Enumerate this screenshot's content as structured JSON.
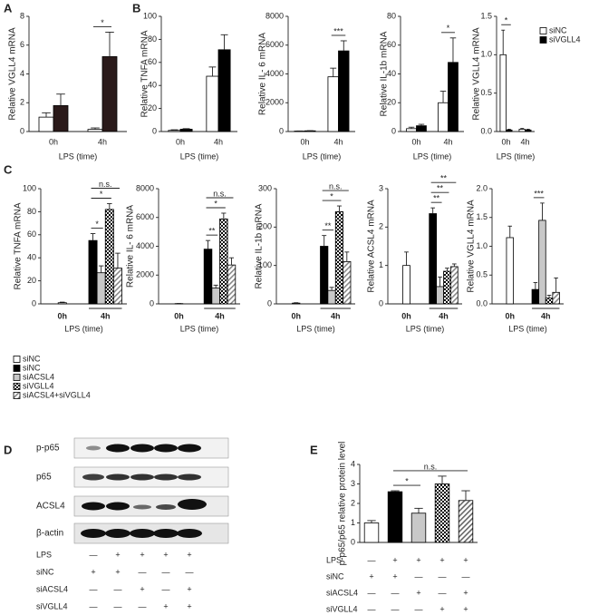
{
  "panel_labels": [
    "A",
    "B",
    "C",
    "D",
    "E"
  ],
  "chart_data": [
    {
      "type": "bar",
      "ylabel": "Relative VGLL4 mRNA",
      "xlabel": "LPS (time)",
      "categories": [
        "0h",
        "4h"
      ],
      "series": [
        {
          "color": "#ffffff",
          "pattern": "none",
          "values": [
            1.0,
            0.15
          ],
          "errors": [
            0.3,
            0.1
          ]
        },
        {
          "color": "#2a1a1a",
          "pattern": "none",
          "values": [
            1.8,
            5.2
          ],
          "errors": [
            0.8,
            1.7
          ]
        }
      ],
      "ylim": [
        0,
        8
      ],
      "yticks": [
        0,
        2,
        4,
        6,
        8
      ],
      "annotations": [
        "*"
      ]
    },
    {
      "type": "bar",
      "ylabel": "Relative TNFA mRNA",
      "xlabel": "LPS (time)",
      "categories": [
        "0h",
        "4h"
      ],
      "series": [
        {
          "color": "#ffffff",
          "pattern": "none",
          "values": [
            1,
            48
          ],
          "errors": [
            0.5,
            8
          ]
        },
        {
          "color": "#000000",
          "pattern": "none",
          "values": [
            2,
            71
          ],
          "errors": [
            0.5,
            13
          ]
        }
      ],
      "ylim": [
        0,
        100
      ],
      "yticks": [
        0,
        20,
        40,
        60,
        80,
        100
      ],
      "annotations": []
    },
    {
      "type": "bar",
      "ylabel": "Relative IL- 6 mRNA",
      "xlabel": "LPS (time)",
      "categories": [
        "0h",
        "4h"
      ],
      "series": [
        {
          "color": "#ffffff",
          "pattern": "none",
          "values": [
            30,
            3800
          ],
          "errors": [
            10,
            600
          ]
        },
        {
          "color": "#000000",
          "pattern": "none",
          "values": [
            50,
            5600
          ],
          "errors": [
            10,
            700
          ]
        }
      ],
      "ylim": [
        0,
        8000
      ],
      "yticks": [
        0,
        2000,
        4000,
        6000,
        8000
      ],
      "annotations": [
        "***"
      ]
    },
    {
      "type": "bar",
      "ylabel": "Relative IL-1b mRNA",
      "xlabel": "LPS (time)",
      "categories": [
        "0h",
        "4h"
      ],
      "series": [
        {
          "color": "#ffffff",
          "pattern": "none",
          "values": [
            2,
            20
          ],
          "errors": [
            1,
            8
          ]
        },
        {
          "color": "#000000",
          "pattern": "none",
          "values": [
            4,
            48
          ],
          "errors": [
            1,
            17
          ]
        }
      ],
      "ylim": [
        0,
        80
      ],
      "yticks": [
        0,
        20,
        40,
        60,
        80
      ],
      "annotations": [
        "*"
      ]
    },
    {
      "type": "bar",
      "ylabel": "Relative VGLL4 mRNA",
      "xlabel": "LPS (time)",
      "categories": [
        "0h",
        "4h"
      ],
      "series": [
        {
          "name": "siNC",
          "color": "#ffffff",
          "pattern": "none",
          "values": [
            1.0,
            0.03
          ],
          "errors": [
            0.32,
            0.01
          ]
        },
        {
          "name": "siVGLL4",
          "color": "#000000",
          "pattern": "none",
          "values": [
            0.02,
            0.02
          ],
          "errors": [
            0.01,
            0.01
          ]
        }
      ],
      "ylim": [
        0,
        1.5
      ],
      "yticks": [
        {
          "value": 0,
          "label": "0.0"
        },
        0.5,
        {
          "value": 1,
          "label": "1.0"
        },
        1.5
      ],
      "legend": "upper right",
      "annotations": [
        "*"
      ]
    },
    {
      "type": "bar",
      "ylabel": "Relative TNFA mRNA",
      "xlabel": "LPS (time)",
      "categories": [
        "0h",
        "4h"
      ],
      "series": [
        {
          "color": "#ffffff",
          "pattern": "none",
          "values": [
            1,
            null
          ],
          "errors": [
            0.5,
            null
          ]
        },
        {
          "color": "#000000",
          "pattern": "none",
          "values": [
            null,
            55
          ],
          "errors": [
            null,
            6
          ]
        },
        {
          "color": "#c8c8c8",
          "pattern": "none",
          "values": [
            null,
            27
          ],
          "errors": [
            null,
            6
          ]
        },
        {
          "color": "#000000",
          "pattern": "checker",
          "values": [
            null,
            82
          ],
          "errors": [
            null,
            5
          ]
        },
        {
          "color": "#888888",
          "pattern": "hatch",
          "values": [
            null,
            31
          ],
          "errors": [
            null,
            13
          ]
        }
      ],
      "ylim": [
        0,
        100
      ],
      "yticks": [
        0,
        20,
        40,
        60,
        80,
        100
      ],
      "annotations": [
        "*",
        "*",
        "n.s."
      ]
    },
    {
      "type": "bar",
      "ylabel": "Relative IL- 6 mRNA",
      "xlabel": "LPS (time)",
      "categories": [
        "0h",
        "4h"
      ],
      "series": [
        {
          "color": "#ffffff",
          "pattern": "none",
          "values": [
            20,
            null
          ],
          "errors": [
            10,
            null
          ]
        },
        {
          "color": "#000000",
          "pattern": "none",
          "values": [
            null,
            3800
          ],
          "errors": [
            null,
            600
          ]
        },
        {
          "color": "#c8c8c8",
          "pattern": "none",
          "values": [
            null,
            1100
          ],
          "errors": [
            null,
            200
          ]
        },
        {
          "color": "#000000",
          "pattern": "checker",
          "values": [
            null,
            5900
          ],
          "errors": [
            null,
            400
          ]
        },
        {
          "color": "#888888",
          "pattern": "hatch",
          "values": [
            null,
            2700
          ],
          "errors": [
            null,
            500
          ]
        }
      ],
      "ylim": [
        0,
        8000
      ],
      "yticks": [
        0,
        2000,
        4000,
        6000,
        8000
      ],
      "annotations": [
        "**",
        "*",
        "n.s."
      ]
    },
    {
      "type": "bar",
      "ylabel": "Relative IL-1b mRNA",
      "xlabel": "LPS (time)",
      "categories": [
        "0h",
        "4h"
      ],
      "series": [
        {
          "color": "#ffffff",
          "pattern": "none",
          "values": [
            2,
            null
          ],
          "errors": [
            1,
            null
          ]
        },
        {
          "color": "#000000",
          "pattern": "none",
          "values": [
            null,
            150
          ],
          "errors": [
            null,
            28
          ]
        },
        {
          "color": "#c8c8c8",
          "pattern": "none",
          "values": [
            null,
            35
          ],
          "errors": [
            null,
            8
          ]
        },
        {
          "color": "#000000",
          "pattern": "checker",
          "values": [
            null,
            240
          ],
          "errors": [
            null,
            15
          ]
        },
        {
          "color": "#888888",
          "pattern": "hatch",
          "values": [
            null,
            110
          ],
          "errors": [
            null,
            25
          ]
        }
      ],
      "ylim": [
        0,
        300
      ],
      "yticks": [
        0,
        100,
        200,
        300
      ],
      "annotations": [
        "**",
        "*",
        "n.s."
      ]
    },
    {
      "type": "bar",
      "ylabel": "Relative ACSL4 mRNA",
      "xlabel": "LPS (time)",
      "categories": [
        "0h",
        "4h"
      ],
      "series": [
        {
          "color": "#ffffff",
          "pattern": "none",
          "values": [
            1.0,
            null
          ],
          "errors": [
            0.35,
            null
          ]
        },
        {
          "color": "#000000",
          "pattern": "none",
          "values": [
            null,
            2.35
          ],
          "errors": [
            null,
            0.15
          ]
        },
        {
          "color": "#c8c8c8",
          "pattern": "none",
          "values": [
            null,
            0.45
          ],
          "errors": [
            null,
            0.25
          ]
        },
        {
          "color": "#000000",
          "pattern": "checker",
          "values": [
            null,
            0.85
          ],
          "errors": [
            null,
            0.08
          ]
        },
        {
          "color": "#888888",
          "pattern": "hatch",
          "values": [
            null,
            0.97
          ],
          "errors": [
            null,
            0.07
          ]
        }
      ],
      "ylim": [
        0,
        3
      ],
      "yticks": [
        0,
        1,
        2,
        3
      ],
      "annotations": [
        "**",
        "**",
        "**"
      ]
    },
    {
      "type": "bar",
      "ylabel": "Relative VGLL4 mRNA",
      "xlabel": "LPS (time)",
      "categories": [
        "0h",
        "4h"
      ],
      "series": [
        {
          "color": "#ffffff",
          "pattern": "none",
          "values": [
            1.15,
            null
          ],
          "errors": [
            0.2,
            null
          ]
        },
        {
          "color": "#000000",
          "pattern": "none",
          "values": [
            null,
            0.25
          ],
          "errors": [
            null,
            0.12
          ]
        },
        {
          "color": "#c8c8c8",
          "pattern": "none",
          "values": [
            null,
            1.45
          ],
          "errors": [
            null,
            0.3
          ]
        },
        {
          "color": "#000000",
          "pattern": "checker",
          "values": [
            null,
            0.1
          ],
          "errors": [
            null,
            0.05
          ]
        },
        {
          "color": "#888888",
          "pattern": "hatch",
          "values": [
            null,
            0.2
          ],
          "errors": [
            null,
            0.25
          ]
        }
      ],
      "ylim": [
        0,
        2
      ],
      "yticks": [
        {
          "value": 0,
          "label": "0.0"
        },
        0.5,
        {
          "value": 1,
          "label": "1.0"
        },
        1.5,
        {
          "value": 2,
          "label": "2.0"
        }
      ],
      "annotations": [
        "***"
      ]
    },
    {
      "type": "bar",
      "ylabel": "p-p65/p65 relative protein level",
      "categories": [
        null,
        null,
        null,
        null,
        null
      ],
      "values": [
        1.0,
        2.6,
        1.5,
        3.0,
        2.15
      ],
      "errors": [
        0.12,
        0.05,
        0.25,
        0.4,
        0.5
      ],
      "colors": [
        "#ffffff",
        "#000000",
        "#c8c8c8",
        "#000000",
        "#666666"
      ],
      "patterns": [
        "none",
        "none",
        "none",
        "checker",
        "hatch"
      ],
      "ylim": [
        0,
        4
      ],
      "yticks": [
        0,
        1,
        2,
        3,
        4
      ],
      "annotations": [
        "*",
        "n.s."
      ],
      "conditions": [
        {
          "label": "LPS",
          "marks": [
            "—",
            "+",
            "+",
            "+",
            "+"
          ]
        },
        {
          "label": "siNC",
          "marks": [
            "+",
            "+",
            "—",
            "—",
            "—"
          ]
        },
        {
          "label": "siACSL4",
          "marks": [
            "—",
            "—",
            "+",
            "—",
            "+"
          ]
        },
        {
          "label": "siVGLL4",
          "marks": [
            "—",
            "—",
            "—",
            "+",
            "+"
          ]
        }
      ]
    }
  ],
  "legend": [
    {
      "name": "siNC",
      "color": "#ffffff",
      "pattern": "none"
    },
    {
      "name": "siNC",
      "color": "#000000",
      "pattern": "none"
    },
    {
      "name": "siACSL4",
      "color": "#c8c8c8",
      "pattern": "none"
    },
    {
      "name": "siVGLL4",
      "color": "#000000",
      "pattern": "checker"
    },
    {
      "name": "siACSL4+siVGLL4",
      "color": "#888888",
      "pattern": "hatch"
    }
  ],
  "blot": {
    "rows": [
      "p-p65",
      "p65",
      "ACSL4",
      "β-actin"
    ],
    "conditions": [
      {
        "label": "LPS",
        "marks": [
          "—",
          "+",
          "+",
          "+",
          "+"
        ]
      },
      {
        "label": "siNC",
        "marks": [
          "+",
          "+",
          "—",
          "—",
          "—"
        ]
      },
      {
        "label": "siACSL4",
        "marks": [
          "—",
          "—",
          "+",
          "—",
          "+"
        ]
      },
      {
        "label": "siVGLL4",
        "marks": [
          "—",
          "—",
          "—",
          "+",
          "+"
        ]
      }
    ]
  }
}
